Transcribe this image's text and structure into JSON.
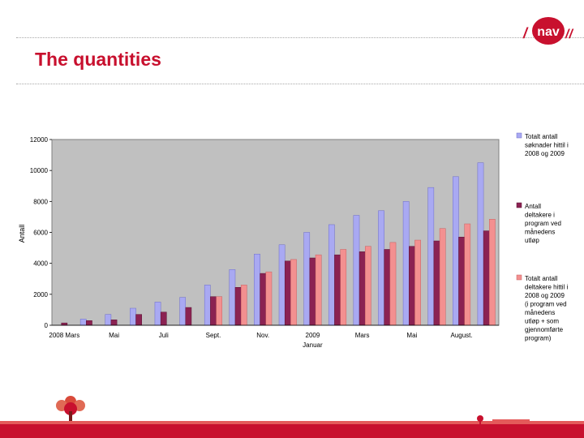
{
  "slide": {
    "title": "The quantities"
  },
  "logo": {
    "text": "nav",
    "slashes": "//"
  },
  "colors": {
    "title": "#c8102e",
    "series_total": "#a9a9f2",
    "series_current": "#8b2252",
    "series_completed": "#f39090",
    "plot_bg": "#c0c0c0",
    "footer": "#c8102e"
  },
  "chart_data": {
    "type": "bar",
    "ylabel": "Antall",
    "xlabel": "",
    "ylim": [
      0,
      12000
    ],
    "y_ticks": [
      0,
      2000,
      4000,
      6000,
      8000,
      10000,
      12000
    ],
    "grid": false,
    "legend_position": "right",
    "x_tick_labels": [
      {
        "index": 0,
        "label": "2008 Mars"
      },
      {
        "index": 2,
        "label": "Mai"
      },
      {
        "index": 4,
        "label": "Juli"
      },
      {
        "index": 6,
        "label": "Sept."
      },
      {
        "index": 8,
        "label": "Nov."
      },
      {
        "index": 10,
        "label": "2009"
      },
      {
        "index": 12,
        "label": "Mars"
      },
      {
        "index": 14,
        "label": "Mai"
      },
      {
        "index": 16,
        "label": "August."
      }
    ],
    "x_sublabel": {
      "index": 10,
      "label": "Januar"
    },
    "categories_count": 18,
    "series": [
      {
        "name": "Totalt antall søknader hittil i 2008 og 2009",
        "legend_lines": [
          "Totalt antall",
          "søknader hittil i",
          "2008 og 2009"
        ],
        "values": [
          0,
          400,
          700,
          1100,
          1500,
          1800,
          2600,
          3600,
          4600,
          5200,
          6000,
          6500,
          7100,
          7400,
          8000,
          8900,
          9600,
          10500
        ]
      },
      {
        "name": "Antall deltakere i program ved månedens utløp",
        "legend_lines": [
          "Antall",
          "deltakere i",
          "program ved",
          "månedens",
          "utløp"
        ],
        "values": [
          150,
          300,
          350,
          700,
          850,
          1150,
          1850,
          2450,
          3350,
          4150,
          4350,
          4550,
          4750,
          4900,
          5100,
          5450,
          5700,
          6100
        ]
      },
      {
        "name": "Totalt antall deltakere hittil i 2008 og 2009 (i program ved månedens utløp + som gjennomførte program)",
        "legend_lines": [
          "Totalt antall",
          "deltakere hittil i",
          "2008 og 2009",
          "(i program ved",
          "månedens",
          "utløp + som",
          "gjennomførte",
          "program)"
        ],
        "values": [
          0,
          0,
          0,
          0,
          0,
          0,
          1850,
          2600,
          3450,
          4250,
          4550,
          4900,
          5100,
          5350,
          5500,
          6250,
          6550,
          6850
        ]
      }
    ]
  }
}
